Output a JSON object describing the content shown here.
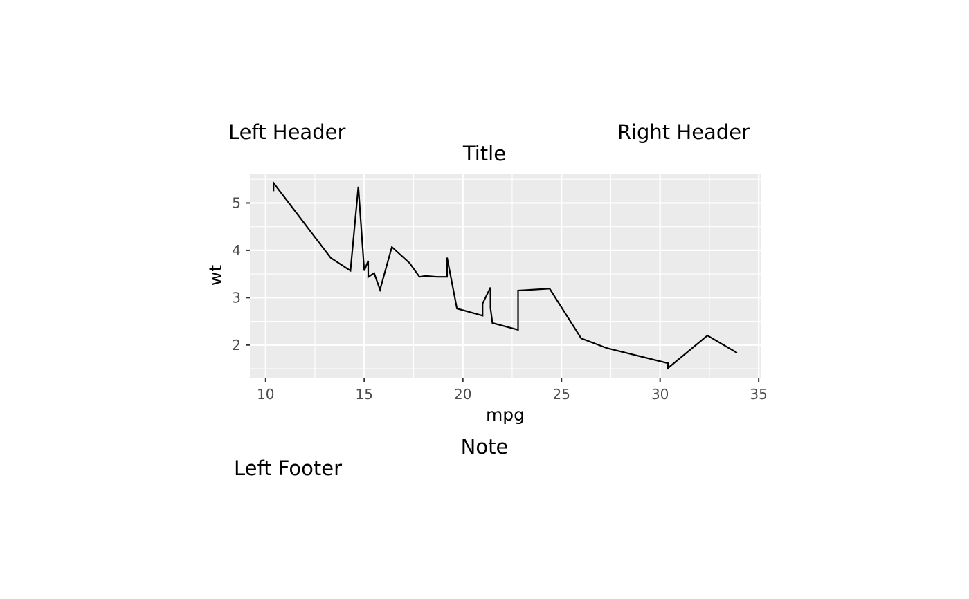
{
  "header": {
    "left": "Left Header",
    "right": "Right Header"
  },
  "footer": {
    "left": "Left Footer"
  },
  "chart_data": {
    "type": "line",
    "title": "Title",
    "xlabel": "mpg",
    "ylabel": "wt",
    "note": "Note",
    "xlim": [
      9.2,
      35.1
    ],
    "ylim": [
      1.31,
      5.62
    ],
    "x_ticks": [
      10,
      15,
      20,
      25,
      30,
      35
    ],
    "y_ticks": [
      2,
      3,
      4,
      5
    ],
    "grid": true,
    "background": "#ebebeb",
    "line_color": "#000000",
    "series": [
      {
        "points": [
          [
            10.4,
            5.25
          ],
          [
            10.4,
            5.424
          ],
          [
            13.3,
            3.84
          ],
          [
            14.3,
            3.57
          ],
          [
            14.7,
            5.345
          ],
          [
            15.0,
            3.57
          ],
          [
            15.2,
            3.78
          ],
          [
            15.2,
            3.435
          ],
          [
            15.5,
            3.52
          ],
          [
            15.8,
            3.17
          ],
          [
            16.4,
            4.07
          ],
          [
            17.3,
            3.73
          ],
          [
            17.8,
            3.44
          ],
          [
            18.1,
            3.46
          ],
          [
            18.7,
            3.44
          ],
          [
            19.2,
            3.44
          ],
          [
            19.2,
            3.845
          ],
          [
            19.7,
            2.77
          ],
          [
            21.0,
            2.62
          ],
          [
            21.0,
            2.875
          ],
          [
            21.4,
            3.215
          ],
          [
            21.4,
            2.78
          ],
          [
            21.5,
            2.465
          ],
          [
            22.8,
            2.32
          ],
          [
            22.8,
            3.15
          ],
          [
            24.4,
            3.19
          ],
          [
            26.0,
            2.14
          ],
          [
            27.3,
            1.935
          ],
          [
            30.4,
            1.615
          ],
          [
            30.4,
            1.513
          ],
          [
            32.4,
            2.2
          ],
          [
            33.9,
            1.835
          ]
        ]
      }
    ]
  }
}
